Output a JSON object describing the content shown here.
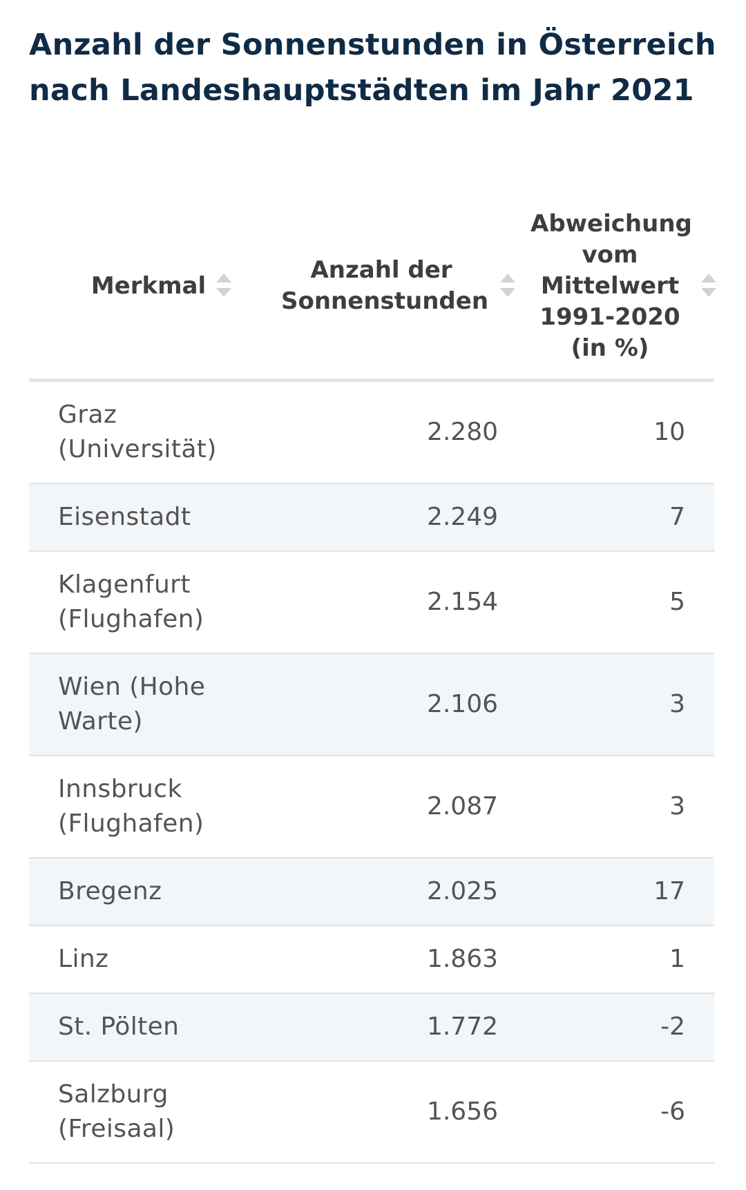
{
  "chart_data": {
    "type": "table",
    "title": "Anzahl der Sonnenstunden in Österreich nach Landeshauptstädten im Jahr 2021",
    "columns": [
      "Merkmal",
      "Anzahl der Sonnenstunden",
      "Abweichung vom Mittelwert 1991-2020 (in %)"
    ],
    "rows": [
      {
        "name": "Graz (Universität)",
        "hours": "2.280",
        "deviation": "10"
      },
      {
        "name": "Eisenstadt",
        "hours": "2.249",
        "deviation": "7"
      },
      {
        "name": "Klagenfurt (Flughafen)",
        "hours": "2.154",
        "deviation": "5"
      },
      {
        "name": "Wien (Hohe Warte)",
        "hours": "2.106",
        "deviation": "3"
      },
      {
        "name": "Innsbruck (Flughafen)",
        "hours": "2.087",
        "deviation": "3"
      },
      {
        "name": "Bregenz",
        "hours": "2.025",
        "deviation": "17"
      },
      {
        "name": "Linz",
        "hours": "1.863",
        "deviation": "1"
      },
      {
        "name": "St. Pölten",
        "hours": "1.772",
        "deviation": "-2"
      },
      {
        "name": "Salzburg (Freisaal)",
        "hours": "1.656",
        "deviation": "-6"
      }
    ]
  },
  "icons": {
    "sort": "sort-icon"
  },
  "colors": {
    "title": "#0f2b46",
    "header_text": "#3e3e3e",
    "body_text": "#545454",
    "alt_row": "#f3f6f9",
    "row_border": "#dfe3e6",
    "sort_icon": "#cfd3d7"
  }
}
